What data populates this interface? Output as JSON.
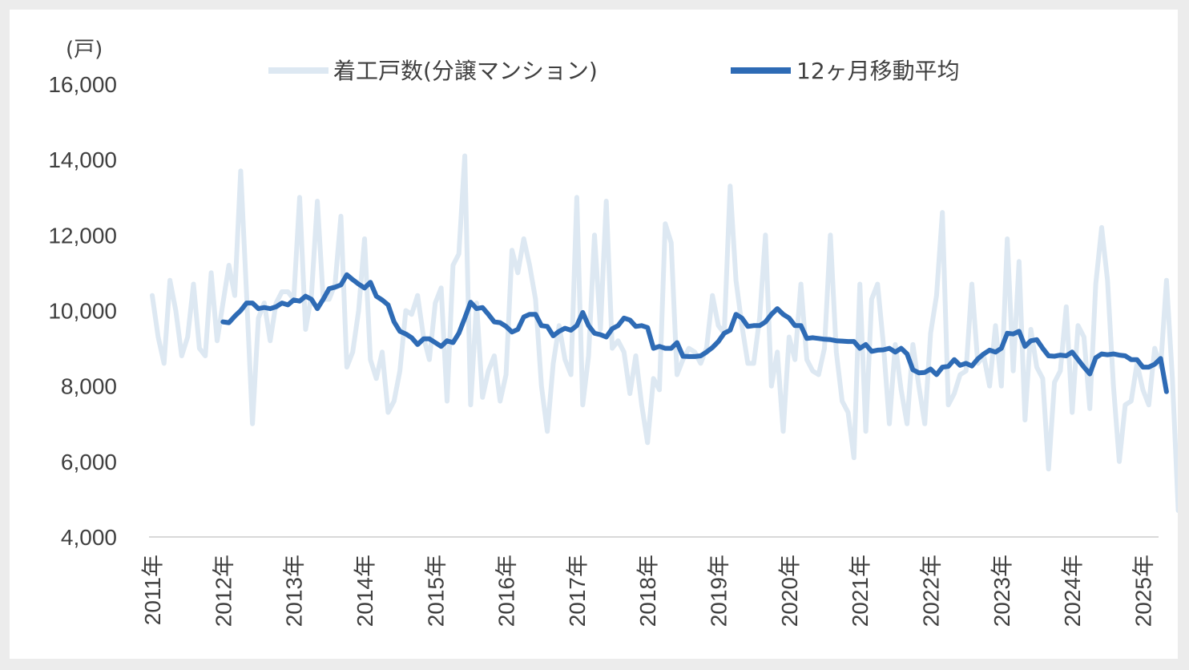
{
  "chart_data": {
    "type": "line",
    "title": "",
    "ylabel": "(戸)",
    "xlabel": "",
    "ylim": [
      4000,
      16000
    ],
    "yticks": [
      "16,000",
      "14,000",
      "12,000",
      "10,000",
      "8,000",
      "6,000",
      "4,000"
    ],
    "ytick_values": [
      16000,
      14000,
      12000,
      10000,
      8000,
      6000,
      4000
    ],
    "x_start": "2011-01",
    "x_labels": [
      "2011年",
      "2012年",
      "2013年",
      "2014年",
      "2015年",
      "2016年",
      "2017年",
      "2018年",
      "2019年",
      "2020年",
      "2021年",
      "2022年",
      "2023年",
      "2024年",
      "2025年"
    ],
    "legend_position": "top",
    "grid": false,
    "series": [
      {
        "name": "着工戸数(分譲マンション)",
        "color": "#dde8f2",
        "values": [
          10400,
          9300,
          8600,
          10800,
          10000,
          8800,
          9300,
          10700,
          9000,
          8800,
          11000,
          9200,
          10200,
          11200,
          10400,
          13700,
          10400,
          7000,
          9800,
          10200,
          9200,
          10200,
          10500,
          10500,
          10300,
          13000,
          9500,
          10400,
          12900,
          10300,
          10300,
          10700,
          12500,
          8500,
          8900,
          10000,
          11900,
          8700,
          8200,
          8900,
          7300,
          7600,
          8400,
          10000,
          9900,
          10400,
          9300,
          8700,
          10200,
          10600,
          7600,
          11200,
          11500,
          14100,
          7500,
          10200,
          7700,
          8400,
          8800,
          7600,
          8300,
          11600,
          11000,
          11900,
          11200,
          10300,
          8000,
          6800,
          8600,
          9600,
          8700,
          8300,
          13000,
          7500,
          8800,
          12000,
          9500,
          12900,
          9000,
          9200,
          8900,
          7800,
          8800,
          7500,
          6500,
          8200,
          7900,
          12300,
          11800,
          8300,
          8700,
          9000,
          8900,
          8600,
          9000,
          10400,
          9600,
          9400,
          13300,
          10800,
          9600,
          8600,
          8600,
          9800,
          12000,
          8000,
          8900,
          6800,
          9300,
          8700,
          10700,
          8700,
          8400,
          8300,
          9000,
          12000,
          8900,
          7600,
          7300,
          6100,
          10700,
          6800,
          10300,
          10700,
          9100,
          7000,
          9100,
          7900,
          7000,
          9100,
          8000,
          7000,
          9400,
          10400,
          12600,
          7500,
          7800,
          8300,
          8400,
          10700,
          8600,
          8800,
          8000,
          9600,
          8000,
          11900,
          8400,
          11300,
          7100,
          9500,
          8500,
          8200,
          5800,
          8100,
          8400,
          10100,
          7300,
          9600,
          9300,
          7400,
          10700,
          12200,
          10800,
          8000,
          6000,
          7500,
          7600,
          8600,
          7900,
          7500,
          9000,
          8500,
          10800,
          8200,
          4700
        ]
      },
      {
        "name": "12ヶ月移動平均",
        "color": "#2e6bb5",
        "values": [
          null,
          null,
          null,
          null,
          null,
          null,
          null,
          null,
          null,
          null,
          null,
          null,
          9700,
          9680,
          9850,
          10000,
          10200,
          10200,
          10050,
          10080,
          10050,
          10100,
          10200,
          10150,
          10280,
          10250,
          10380,
          10300,
          10050,
          10300,
          10580,
          10620,
          10680,
          10950,
          10820,
          10700,
          10600,
          10750,
          10380,
          10280,
          10150,
          9700,
          9450,
          9380,
          9280,
          9100,
          9250,
          9250,
          9150,
          9050,
          9200,
          9150,
          9400,
          9800,
          10220,
          10050,
          10080,
          9900,
          9700,
          9680,
          9580,
          9430,
          9500,
          9830,
          9900,
          9900,
          9600,
          9580,
          9330,
          9450,
          9530,
          9480,
          9600,
          9950,
          9600,
          9400,
          9360,
          9300,
          9520,
          9600,
          9800,
          9750,
          9580,
          9600,
          9550,
          9000,
          9050,
          9000,
          9000,
          9150,
          8790,
          8780,
          8780,
          8800,
          8900,
          9020,
          9180,
          9400,
          9480,
          9900,
          9800,
          9580,
          9600,
          9600,
          9700,
          9900,
          10050,
          9900,
          9800,
          9600,
          9600,
          9260,
          9280,
          9260,
          9240,
          9230,
          9200,
          9190,
          9180,
          9180,
          9000,
          9100,
          8920,
          8950,
          8960,
          9000,
          8900,
          9000,
          8850,
          8430,
          8350,
          8360,
          8450,
          8300,
          8500,
          8520,
          8700,
          8550,
          8600,
          8530,
          8720,
          8850,
          8950,
          8900,
          9000,
          9400,
          9380,
          9450,
          9050,
          9200,
          9230,
          9000,
          8800,
          8790,
          8820,
          8800,
          8900,
          8700,
          8500,
          8320,
          8750,
          8850,
          8830,
          8850,
          8820,
          8800,
          8700,
          8700,
          8500,
          8500,
          8580,
          8730,
          7850
        ]
      }
    ]
  }
}
